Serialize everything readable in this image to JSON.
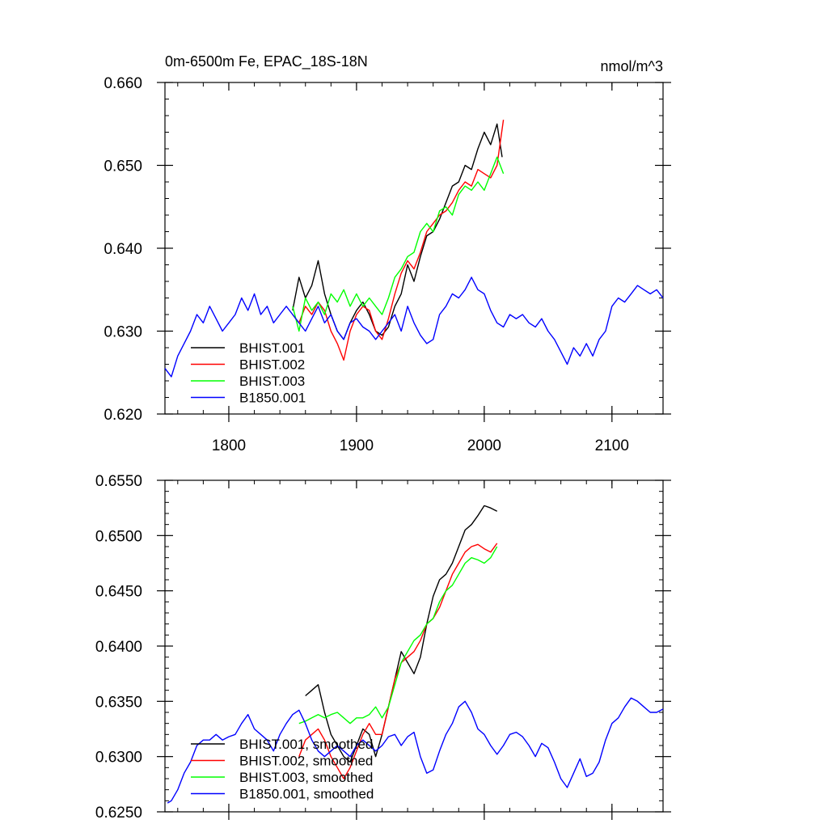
{
  "chart_data": [
    {
      "type": "line",
      "title": "0m-6500m Fe, EPAC_18S-18N",
      "units_label": "nmol/m^3",
      "xlim": [
        1750,
        2140
      ],
      "ylim": [
        0.62,
        0.66
      ],
      "x_ticks": [
        1800,
        1900,
        2000,
        2100
      ],
      "x_tick_labels": [
        "1800",
        "1900",
        "2000",
        "2100"
      ],
      "y_ticks": [
        0.62,
        0.63,
        0.64,
        0.65,
        0.66
      ],
      "y_tick_labels": [
        "0.620",
        "0.630",
        "0.640",
        "0.650",
        "0.660"
      ],
      "grid": false,
      "legend_position": "bottom-left",
      "series": [
        {
          "name": "BHIST.001",
          "color": "#000000",
          "x": [
            1850,
            1855,
            1860,
            1865,
            1870,
            1875,
            1880,
            1885,
            1890,
            1895,
            1900,
            1905,
            1910,
            1915,
            1920,
            1925,
            1930,
            1935,
            1940,
            1945,
            1950,
            1955,
            1960,
            1965,
            1970,
            1975,
            1980,
            1985,
            1990,
            1995,
            2000,
            2005,
            2010,
            2014
          ],
          "y": [
            0.6325,
            0.6365,
            0.634,
            0.6355,
            0.6385,
            0.6345,
            0.632,
            0.63,
            0.629,
            0.631,
            0.6325,
            0.6335,
            0.632,
            0.63,
            0.6295,
            0.6305,
            0.633,
            0.6345,
            0.638,
            0.636,
            0.639,
            0.6415,
            0.642,
            0.6435,
            0.6455,
            0.6475,
            0.648,
            0.65,
            0.6495,
            0.652,
            0.654,
            0.6525,
            0.655,
            0.651
          ]
        },
        {
          "name": "BHIST.002",
          "color": "#ff0000",
          "x": [
            1850,
            1855,
            1860,
            1865,
            1870,
            1875,
            1880,
            1885,
            1890,
            1895,
            1900,
            1905,
            1910,
            1915,
            1920,
            1925,
            1930,
            1935,
            1940,
            1945,
            1950,
            1955,
            1960,
            1965,
            1970,
            1975,
            1980,
            1985,
            1990,
            1995,
            2000,
            2005,
            2010,
            2015
          ],
          "y": [
            0.632,
            0.631,
            0.633,
            0.632,
            0.6335,
            0.6325,
            0.63,
            0.6285,
            0.6265,
            0.63,
            0.632,
            0.633,
            0.6325,
            0.63,
            0.629,
            0.6315,
            0.6345,
            0.637,
            0.6385,
            0.6375,
            0.6395,
            0.642,
            0.643,
            0.644,
            0.6445,
            0.6455,
            0.647,
            0.648,
            0.6475,
            0.6495,
            0.649,
            0.6485,
            0.65,
            0.6555
          ]
        },
        {
          "name": "BHIST.003",
          "color": "#00ff00",
          "x": [
            1850,
            1855,
            1860,
            1865,
            1870,
            1875,
            1880,
            1885,
            1890,
            1895,
            1900,
            1905,
            1910,
            1915,
            1920,
            1925,
            1930,
            1935,
            1940,
            1945,
            1950,
            1955,
            1960,
            1965,
            1970,
            1975,
            1980,
            1985,
            1990,
            1995,
            2000,
            2005,
            2010,
            2015
          ],
          "y": [
            0.633,
            0.63,
            0.634,
            0.6325,
            0.6335,
            0.632,
            0.6345,
            0.6335,
            0.635,
            0.633,
            0.6345,
            0.633,
            0.634,
            0.633,
            0.632,
            0.634,
            0.6365,
            0.6375,
            0.639,
            0.6395,
            0.642,
            0.643,
            0.642,
            0.6445,
            0.645,
            0.644,
            0.6465,
            0.6475,
            0.647,
            0.648,
            0.647,
            0.649,
            0.651,
            0.649
          ]
        },
        {
          "name": "B1850.001",
          "color": "#0000ff",
          "x": [
            1750,
            1755,
            1760,
            1765,
            1770,
            1775,
            1780,
            1785,
            1790,
            1795,
            1800,
            1805,
            1810,
            1815,
            1820,
            1825,
            1830,
            1835,
            1840,
            1845,
            1850,
            1855,
            1860,
            1865,
            1870,
            1875,
            1880,
            1885,
            1890,
            1895,
            1900,
            1905,
            1910,
            1915,
            1920,
            1925,
            1930,
            1935,
            1940,
            1945,
            1950,
            1955,
            1960,
            1965,
            1970,
            1975,
            1980,
            1985,
            1990,
            1995,
            2000,
            2005,
            2010,
            2015,
            2020,
            2025,
            2030,
            2035,
            2040,
            2045,
            2050,
            2055,
            2060,
            2065,
            2070,
            2075,
            2080,
            2085,
            2090,
            2095,
            2100,
            2105,
            2110,
            2115,
            2120,
            2125,
            2130,
            2135,
            2140
          ],
          "y": [
            0.6255,
            0.6245,
            0.627,
            0.6285,
            0.63,
            0.632,
            0.631,
            0.633,
            0.6315,
            0.63,
            0.631,
            0.632,
            0.634,
            0.6325,
            0.6345,
            0.632,
            0.633,
            0.631,
            0.632,
            0.633,
            0.632,
            0.631,
            0.63,
            0.6315,
            0.633,
            0.631,
            0.632,
            0.63,
            0.629,
            0.631,
            0.6315,
            0.6305,
            0.63,
            0.629,
            0.63,
            0.631,
            0.632,
            0.63,
            0.633,
            0.631,
            0.6295,
            0.6285,
            0.629,
            0.632,
            0.633,
            0.6345,
            0.634,
            0.635,
            0.6365,
            0.635,
            0.6345,
            0.6325,
            0.631,
            0.6305,
            0.632,
            0.6315,
            0.632,
            0.631,
            0.6305,
            0.6315,
            0.63,
            0.629,
            0.6275,
            0.626,
            0.628,
            0.627,
            0.6285,
            0.627,
            0.629,
            0.63,
            0.633,
            0.634,
            0.6335,
            0.6345,
            0.6355,
            0.635,
            0.6345,
            0.635,
            0.634
          ]
        }
      ]
    },
    {
      "type": "line",
      "title": "",
      "xlim": [
        1750,
        2140
      ],
      "ylim": [
        0.625,
        0.655
      ],
      "x_ticks": [
        1800,
        1900,
        2000,
        2100
      ],
      "x_tick_labels": [],
      "y_ticks": [
        0.625,
        0.63,
        0.635,
        0.64,
        0.645,
        0.65,
        0.655
      ],
      "y_tick_labels": [
        "0.6250",
        "0.6300",
        "0.6350",
        "0.6400",
        "0.6450",
        "0.6500",
        "0.6550"
      ],
      "grid": false,
      "legend_position": "bottom-left",
      "series": [
        {
          "name": "BHIST.001, smoothed",
          "color": "#000000",
          "x": [
            1860,
            1865,
            1870,
            1875,
            1880,
            1885,
            1890,
            1895,
            1900,
            1905,
            1910,
            1915,
            1920,
            1925,
            1930,
            1935,
            1940,
            1945,
            1950,
            1955,
            1960,
            1965,
            1970,
            1975,
            1980,
            1985,
            1990,
            1995,
            2000,
            2005,
            2010
          ],
          "y": [
            0.6355,
            0.636,
            0.6365,
            0.634,
            0.632,
            0.631,
            0.63,
            0.6295,
            0.631,
            0.6325,
            0.632,
            0.63,
            0.632,
            0.6345,
            0.637,
            0.6395,
            0.6385,
            0.6375,
            0.639,
            0.642,
            0.6445,
            0.646,
            0.6465,
            0.6475,
            0.649,
            0.6505,
            0.651,
            0.6518,
            0.6527,
            0.6525,
            0.6522
          ]
        },
        {
          "name": "BHIST.002, smoothed",
          "color": "#ff0000",
          "x": [
            1855,
            1860,
            1865,
            1870,
            1875,
            1880,
            1885,
            1890,
            1895,
            1900,
            1905,
            1910,
            1915,
            1920,
            1925,
            1930,
            1935,
            1940,
            1945,
            1950,
            1955,
            1960,
            1965,
            1970,
            1975,
            1980,
            1985,
            1990,
            1995,
            2000,
            2005,
            2010
          ],
          "y": [
            0.63,
            0.6315,
            0.632,
            0.6325,
            0.6315,
            0.63,
            0.629,
            0.628,
            0.629,
            0.6305,
            0.632,
            0.633,
            0.632,
            0.632,
            0.6345,
            0.637,
            0.6385,
            0.639,
            0.6395,
            0.6405,
            0.642,
            0.6425,
            0.6435,
            0.645,
            0.6465,
            0.6475,
            0.6485,
            0.649,
            0.6492,
            0.6488,
            0.6485,
            0.6493
          ]
        },
        {
          "name": "BHIST.003, smoothed",
          "color": "#00ff00",
          "x": [
            1855,
            1860,
            1865,
            1870,
            1875,
            1880,
            1885,
            1890,
            1895,
            1900,
            1905,
            1910,
            1915,
            1920,
            1925,
            1930,
            1935,
            1940,
            1945,
            1950,
            1955,
            1960,
            1965,
            1970,
            1975,
            1980,
            1985,
            1990,
            1995,
            2000,
            2005,
            2010
          ],
          "y": [
            0.633,
            0.6332,
            0.6335,
            0.6338,
            0.6335,
            0.6338,
            0.634,
            0.6335,
            0.633,
            0.6335,
            0.6335,
            0.6338,
            0.6345,
            0.6335,
            0.6345,
            0.6365,
            0.6385,
            0.6395,
            0.6405,
            0.641,
            0.642,
            0.6425,
            0.644,
            0.645,
            0.6455,
            0.6465,
            0.6475,
            0.648,
            0.6478,
            0.6475,
            0.648,
            0.649
          ]
        },
        {
          "name": "B1850.001, smoothed",
          "color": "#0000ff",
          "x": [
            1752,
            1755,
            1760,
            1765,
            1770,
            1775,
            1780,
            1785,
            1790,
            1795,
            1800,
            1805,
            1810,
            1815,
            1820,
            1825,
            1830,
            1835,
            1840,
            1845,
            1850,
            1855,
            1860,
            1865,
            1870,
            1875,
            1880,
            1885,
            1890,
            1895,
            1900,
            1905,
            1910,
            1915,
            1920,
            1925,
            1930,
            1935,
            1940,
            1945,
            1950,
            1955,
            1960,
            1965,
            1970,
            1975,
            1980,
            1985,
            1990,
            1995,
            2000,
            2005,
            2010,
            2015,
            2020,
            2025,
            2030,
            2035,
            2040,
            2045,
            2050,
            2055,
            2060,
            2065,
            2070,
            2075,
            2080,
            2085,
            2090,
            2095,
            2100,
            2105,
            2110,
            2115,
            2120,
            2125,
            2130,
            2135,
            2140
          ],
          "y": [
            0.6258,
            0.626,
            0.627,
            0.6285,
            0.6295,
            0.631,
            0.6315,
            0.6315,
            0.632,
            0.6315,
            0.6318,
            0.632,
            0.633,
            0.6338,
            0.6325,
            0.632,
            0.6315,
            0.6305,
            0.632,
            0.633,
            0.6338,
            0.6342,
            0.633,
            0.6315,
            0.6305,
            0.63,
            0.6305,
            0.631,
            0.6305,
            0.63,
            0.631,
            0.6315,
            0.631,
            0.6305,
            0.631,
            0.6318,
            0.632,
            0.631,
            0.6318,
            0.6322,
            0.63,
            0.6285,
            0.6288,
            0.6305,
            0.632,
            0.633,
            0.6345,
            0.635,
            0.634,
            0.6325,
            0.632,
            0.631,
            0.6302,
            0.631,
            0.632,
            0.6322,
            0.6318,
            0.631,
            0.63,
            0.6312,
            0.6308,
            0.6295,
            0.628,
            0.6272,
            0.6285,
            0.6298,
            0.6282,
            0.6285,
            0.6295,
            0.6315,
            0.633,
            0.6335,
            0.6345,
            0.6353,
            0.635,
            0.6345,
            0.634,
            0.634,
            0.6343
          ]
        }
      ]
    }
  ]
}
